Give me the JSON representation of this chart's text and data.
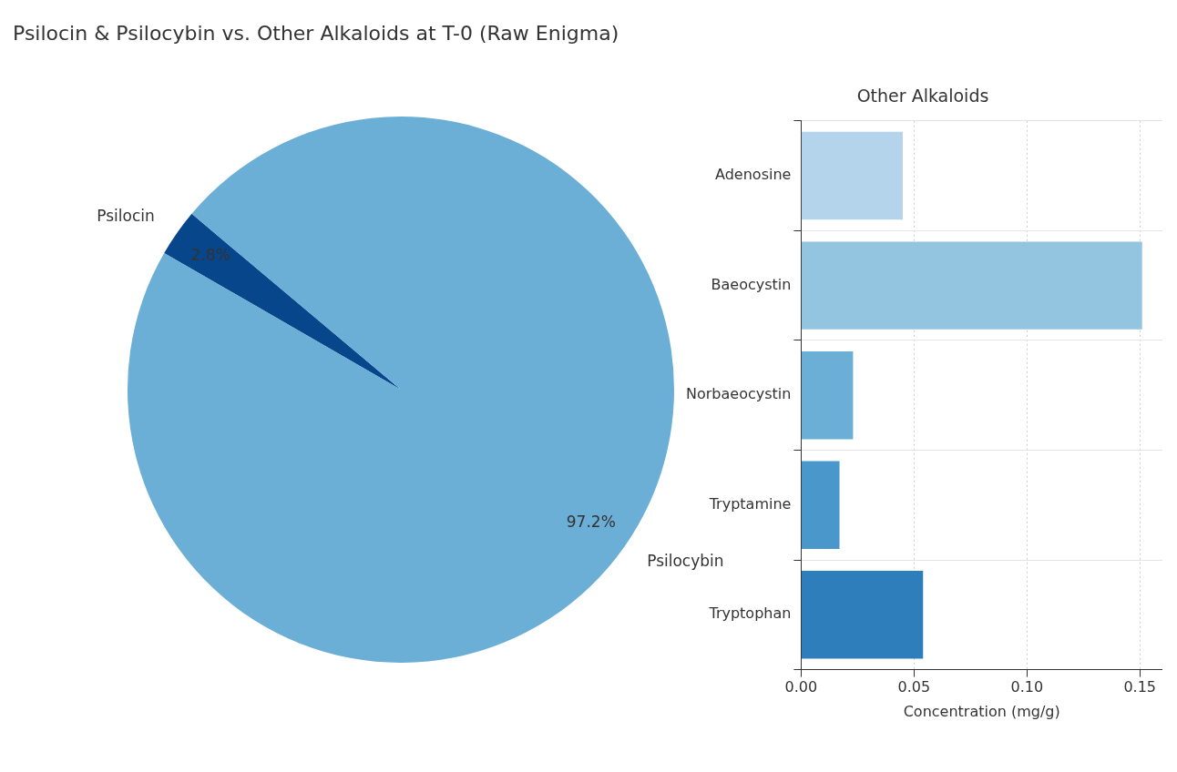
{
  "chart_data": [
    {
      "type": "pie",
      "title": "Psilocin & Psilocybin vs. Other Alkaloids at T-0 (Raw Enigma)",
      "categories": [
        "Psilocin",
        "Psilocybin"
      ],
      "values": [
        2.8,
        97.2
      ],
      "colors": [
        "#08468c",
        "#6baed6"
      ],
      "value_labels": [
        "2.8%",
        "97.2%"
      ],
      "legend": false
    },
    {
      "type": "bar",
      "orientation": "horizontal",
      "title": "Other Alkaloids",
      "xlabel": "Concentration (mg/g)",
      "categories": [
        "Adenosine",
        "Baeocystin",
        "Norbaeocystin",
        "Tryptamine",
        "Tryptophan"
      ],
      "values": [
        0.045,
        0.151,
        0.023,
        0.017,
        0.054
      ],
      "colors": [
        "#b3d4ea",
        "#93c4e0",
        "#6baed6",
        "#4a98cb",
        "#2f7ebc"
      ],
      "xlim": [
        0,
        0.16
      ],
      "xticks": [
        {
          "value": 0,
          "label": "0.00"
        },
        {
          "value": 0.05,
          "label": "0.05"
        },
        {
          "value": 0.1,
          "label": "0.10"
        },
        {
          "value": 0.15,
          "label": "0.15"
        }
      ],
      "grid": true,
      "legend": false
    }
  ]
}
